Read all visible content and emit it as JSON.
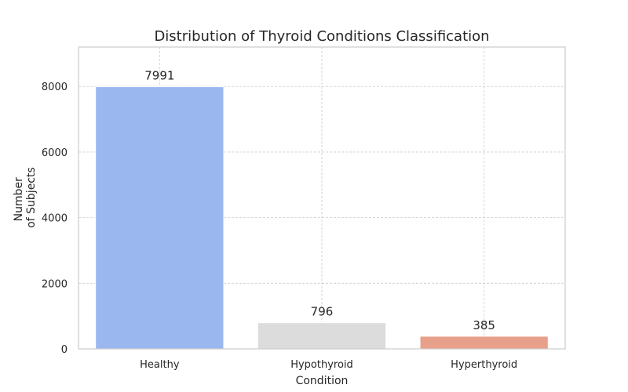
{
  "chart_data": {
    "type": "bar",
    "title": "Distribution of Thyroid Conditions Classification",
    "xlabel": "Condition",
    "ylabel": [
      "Number",
      "of Subjects"
    ],
    "categories": [
      "Healthy",
      "Hypothyroid",
      "Hyperthyroid"
    ],
    "values": [
      7991,
      796,
      385
    ],
    "data_labels": [
      "7991",
      "796",
      "385"
    ],
    "colors": [
      "#9bb7f0",
      "#dcdcdc",
      "#e8a08a"
    ],
    "ylim": [
      0,
      9200
    ],
    "yticks": [
      0,
      2000,
      4000,
      6000,
      8000
    ],
    "grid": true,
    "legend": "none"
  }
}
